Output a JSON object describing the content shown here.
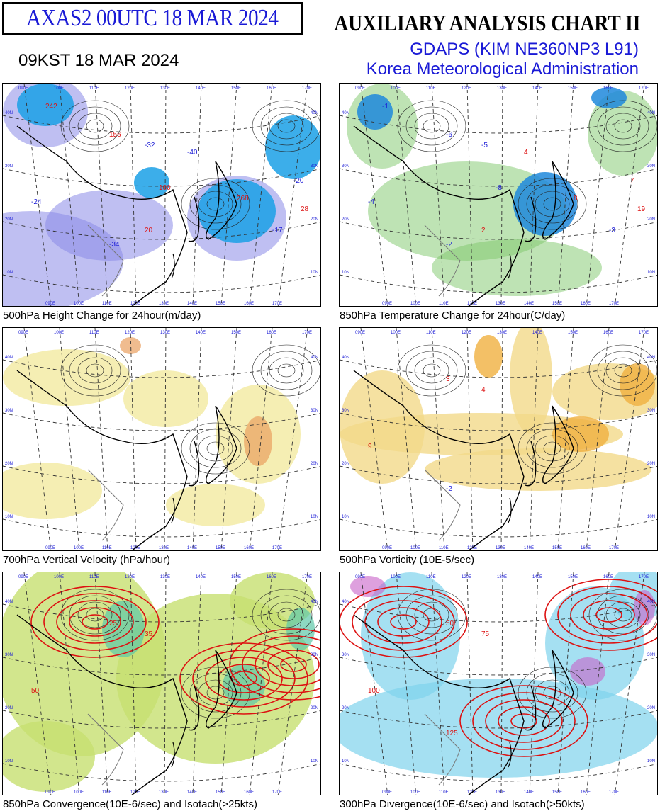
{
  "header": {
    "chart_code": "AXAS2  00UTC 18 MAR 2024",
    "local_time": "09KST 18 MAR 2024",
    "chart_title": "AUXILIARY ANALYSIS CHART II",
    "model": "GDAPS (KIM NE360NP3 L91)",
    "agency": "Korea Meteorological Administration"
  },
  "panels": [
    {
      "caption": "500hPa Height Change for 24hour(m/day)",
      "scheme": "height",
      "labels": [
        "156",
        "-32",
        "-24",
        "-34",
        "20",
        "-20",
        "268",
        "242",
        "-40",
        "100",
        "-17",
        "28"
      ]
    },
    {
      "caption": "850hPa Temperature Change for 24hour(C/day)",
      "scheme": "temp",
      "labels": [
        "-6",
        "-5",
        "-4",
        "-2",
        "2",
        "7",
        "8",
        "-1",
        "4",
        "-8",
        "-3",
        "19"
      ]
    },
    {
      "caption": "700hPa Vertical Velocity (hPa/hour)",
      "scheme": "vvel",
      "labels": []
    },
    {
      "caption": "500hPa Vorticity (10E-5/sec)",
      "scheme": "vort",
      "labels": [
        "3",
        "4",
        "9",
        "-2"
      ]
    },
    {
      "caption": "850hPa Convergence(10E-6/sec) and Isotach(>25kts)",
      "scheme": "conv",
      "labels": [
        "25",
        "35",
        "50"
      ]
    },
    {
      "caption": "300hPa Divergence(10E-6/sec) and Isotach(>50kts)",
      "scheme": "div",
      "labels": [
        "50",
        "75",
        "100",
        "125"
      ]
    }
  ],
  "graticule": {
    "lon_labels": [
      "090E",
      "100E",
      "110E",
      "120E",
      "130E",
      "140E",
      "150E",
      "160E",
      "170E"
    ],
    "lat_labels": [
      "10N",
      "20N",
      "30N",
      "40N"
    ]
  },
  "colors": {
    "title_blue": "#1a1ad6",
    "height_fall": "#8a8ae8",
    "height_fall_strong": "#1aa0e6",
    "temp_fall": "#7ec86a",
    "temp_fall_strong": "#1e88dc",
    "vvel": "#f3eaa0",
    "vort": "#f0b040",
    "conv": "#c7e070",
    "div": "#7fd3ec",
    "isotach": "#dd1111"
  }
}
